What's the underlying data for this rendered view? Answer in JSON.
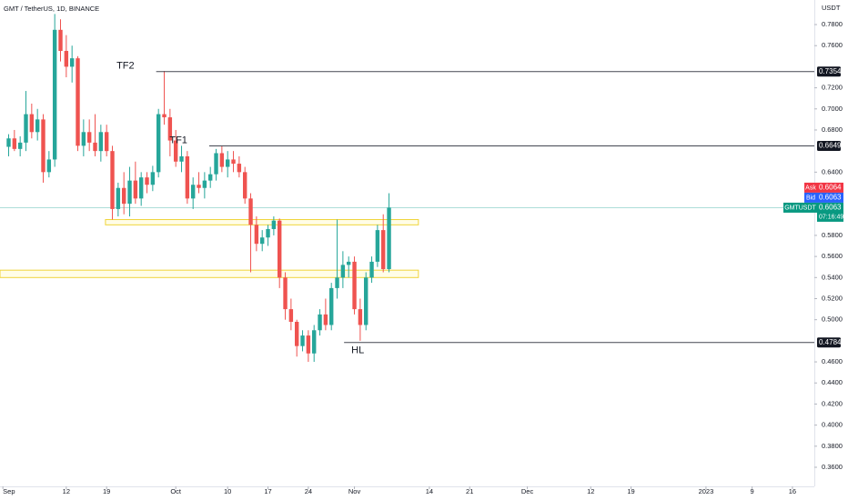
{
  "chart_data": {
    "type": "candlestick",
    "title": "GMT / TetherUS, 1D, BINANCE",
    "y_unit": "USDT",
    "up_color": "#26a69a",
    "down_color": "#ef5350",
    "x": [
      245,
      246,
      247,
      248,
      249,
      250,
      251,
      252,
      253,
      254,
      255,
      256,
      257,
      258,
      259,
      260,
      261,
      262,
      263,
      264,
      265,
      266,
      267,
      268,
      269,
      270,
      271,
      272,
      273,
      274,
      275,
      276,
      277,
      278,
      279,
      280,
      281,
      282,
      283,
      284,
      285,
      286,
      287,
      288,
      289,
      290,
      291,
      292,
      293,
      294,
      295,
      296,
      297,
      298,
      299,
      300,
      301,
      302,
      303,
      304,
      305,
      306,
      307,
      308,
      309,
      310,
      311
    ],
    "open": [
      0.664,
      0.672,
      0.662,
      0.668,
      0.695,
      0.678,
      0.69,
      0.64,
      0.652,
      0.775,
      0.755,
      0.74,
      0.748,
      0.665,
      0.678,
      0.668,
      0.66,
      0.678,
      0.66,
      0.605,
      0.625,
      0.61,
      0.632,
      0.615,
      0.635,
      0.628,
      0.64,
      0.695,
      0.692,
      0.67,
      0.65,
      0.655,
      0.615,
      0.628,
      0.625,
      0.632,
      0.638,
      0.658,
      0.645,
      0.652,
      0.648,
      0.64,
      0.615,
      0.59,
      0.572,
      0.578,
      0.586,
      0.594,
      0.54,
      0.51,
      0.498,
      0.475,
      0.485,
      0.468,
      0.49,
      0.505,
      0.495,
      0.53,
      0.54,
      0.552,
      0.555,
      0.51,
      0.495,
      0.54,
      0.555,
      0.585,
      0.548
    ],
    "high": [
      0.676,
      0.68,
      0.674,
      0.717,
      0.705,
      0.7,
      0.695,
      0.66,
      0.79,
      0.785,
      0.77,
      0.76,
      0.75,
      0.69,
      0.69,
      0.695,
      0.685,
      0.685,
      0.665,
      0.63,
      0.64,
      0.645,
      0.65,
      0.64,
      0.64,
      0.646,
      0.7,
      0.736,
      0.7,
      0.68,
      0.665,
      0.66,
      0.635,
      0.64,
      0.64,
      0.645,
      0.662,
      0.665,
      0.66,
      0.66,
      0.655,
      0.645,
      0.62,
      0.598,
      0.585,
      0.59,
      0.598,
      0.596,
      0.545,
      0.52,
      0.5,
      0.49,
      0.49,
      0.495,
      0.51,
      0.52,
      0.535,
      0.595,
      0.565,
      0.56,
      0.56,
      0.52,
      0.545,
      0.56,
      0.59,
      0.6,
      0.62
    ],
    "low": [
      0.655,
      0.66,
      0.655,
      0.66,
      0.672,
      0.67,
      0.63,
      0.635,
      0.645,
      0.745,
      0.73,
      0.725,
      0.66,
      0.655,
      0.66,
      0.655,
      0.65,
      0.655,
      0.595,
      0.598,
      0.6,
      0.598,
      0.61,
      0.608,
      0.62,
      0.622,
      0.635,
      0.685,
      0.655,
      0.645,
      0.64,
      0.61,
      0.605,
      0.62,
      0.615,
      0.625,
      0.632,
      0.64,
      0.635,
      0.64,
      0.635,
      0.61,
      0.545,
      0.565,
      0.565,
      0.57,
      0.58,
      0.53,
      0.5,
      0.49,
      0.465,
      0.47,
      0.46,
      0.46,
      0.485,
      0.49,
      0.49,
      0.52,
      0.53,
      0.54,
      0.505,
      0.48,
      0.49,
      0.535,
      0.55,
      0.545,
      0.545
    ],
    "close": [
      0.672,
      0.662,
      0.668,
      0.695,
      0.678,
      0.69,
      0.64,
      0.652,
      0.775,
      0.755,
      0.74,
      0.748,
      0.665,
      0.678,
      0.668,
      0.66,
      0.678,
      0.66,
      0.605,
      0.625,
      0.61,
      0.632,
      0.615,
      0.635,
      0.628,
      0.64,
      0.695,
      0.692,
      0.67,
      0.65,
      0.655,
      0.615,
      0.628,
      0.625,
      0.632,
      0.638,
      0.658,
      0.645,
      0.652,
      0.648,
      0.64,
      0.615,
      0.59,
      0.572,
      0.578,
      0.586,
      0.594,
      0.54,
      0.51,
      0.498,
      0.475,
      0.485,
      0.468,
      0.49,
      0.505,
      0.495,
      0.53,
      0.54,
      0.552,
      0.555,
      0.51,
      0.495,
      0.54,
      0.555,
      0.585,
      0.548,
      0.6063
    ],
    "xlim": [
      243.5,
      384.8
    ],
    "ylim": [
      0.3419,
      0.8033
    ],
    "xticks": [
      {
        "value": 244,
        "label": "Sep"
      },
      {
        "value": 255,
        "label": "12"
      },
      {
        "value": 262,
        "label": "19"
      },
      {
        "value": 274,
        "label": "Oct"
      },
      {
        "value": 283,
        "label": "10"
      },
      {
        "value": 290,
        "label": "17"
      },
      {
        "value": 297,
        "label": "24"
      },
      {
        "value": 305,
        "label": "Nov"
      },
      {
        "value": 318,
        "label": "14"
      },
      {
        "value": 325,
        "label": "21"
      },
      {
        "value": 335,
        "label": "Dec"
      },
      {
        "value": 346,
        "label": "12"
      },
      {
        "value": 353,
        "label": "19"
      },
      {
        "value": 366,
        "label": "2023"
      },
      {
        "value": 374,
        "label": "9"
      },
      {
        "value": 381,
        "label": "16"
      }
    ],
    "yticks": [
      {
        "value": 0.78,
        "label": "0.7800"
      },
      {
        "value": 0.76,
        "label": "0.7600"
      },
      {
        "value": 0.72,
        "label": "0.7200"
      },
      {
        "value": 0.7,
        "label": "0.7000"
      },
      {
        "value": 0.68,
        "label": "0.6800"
      },
      {
        "value": 0.64,
        "label": "0.6400"
      },
      {
        "value": 0.58,
        "label": "0.5800"
      },
      {
        "value": 0.56,
        "label": "0.5600"
      },
      {
        "value": 0.54,
        "label": "0.5400"
      },
      {
        "value": 0.52,
        "label": "0.5200"
      },
      {
        "value": 0.5,
        "label": "0.5000"
      },
      {
        "value": 0.46,
        "label": "0.4600"
      },
      {
        "value": 0.44,
        "label": "0.4400"
      },
      {
        "value": 0.42,
        "label": "0.4200"
      },
      {
        "value": 0.4,
        "label": "0.4000"
      },
      {
        "value": 0.38,
        "label": "0.3800"
      },
      {
        "value": 0.36,
        "label": "0.3600"
      }
    ],
    "levels": [
      {
        "label": "TF2",
        "value": 0.7354,
        "x_start": 270.6
      },
      {
        "label": "TF1",
        "value": 0.6649,
        "x_start": 279.8
      },
      {
        "label": "HL",
        "value": 0.4784,
        "x_start": 303.2
      }
    ],
    "zones": [
      {
        "low": 0.59,
        "high": 0.595,
        "x_start": 261.8,
        "x_end": 316.1
      },
      {
        "low": 0.54,
        "high": 0.547,
        "x_start": 243.5,
        "x_end": 316.1
      }
    ],
    "ask": {
      "label": "Ask",
      "value": 0.6064
    },
    "bid": {
      "label": "Bid",
      "value": 0.6063
    },
    "last": {
      "label": "GMTUSDT",
      "value": 0.6063,
      "countdown": "07:16:49"
    }
  }
}
